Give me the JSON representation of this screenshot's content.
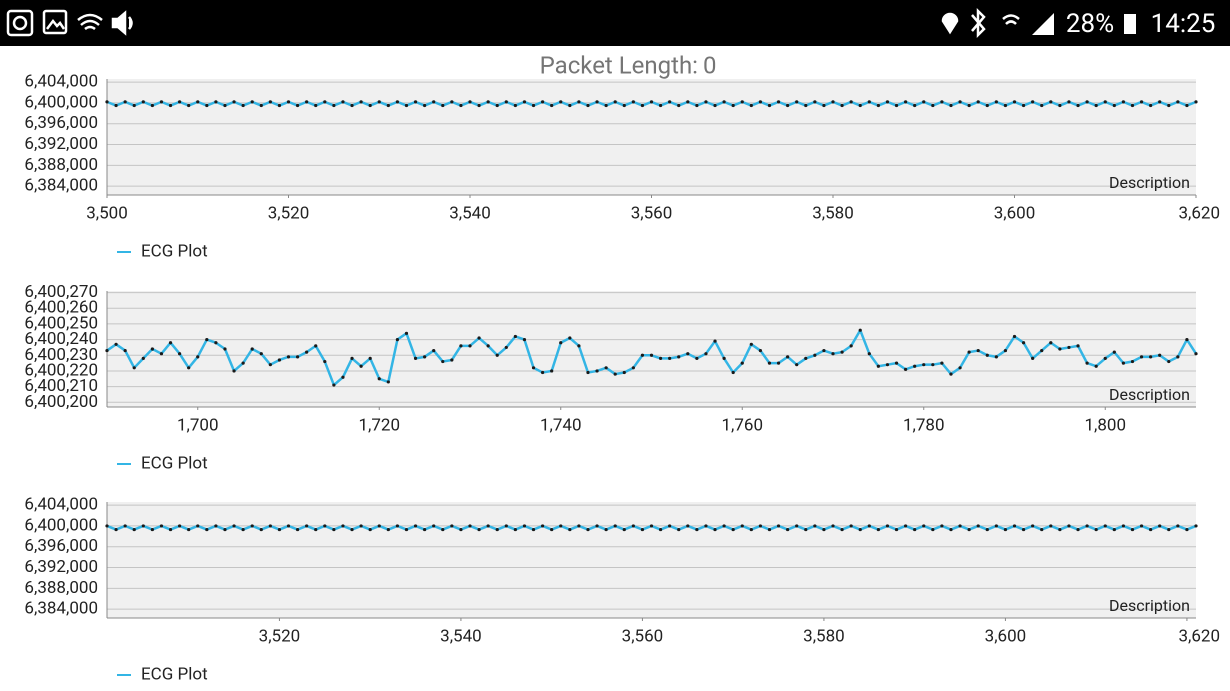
{
  "status_bar": {
    "battery": "28%",
    "time": "14:25"
  },
  "header": {
    "label": "Packet Length:",
    "value": 0
  },
  "chart_data": [
    {
      "type": "line",
      "description": "Description",
      "grid": true,
      "legend": "bottom-left",
      "point_color": "#1a1a1a",
      "x": [
        3500,
        3501,
        3502,
        3503,
        3504,
        3505,
        3506,
        3507,
        3508,
        3509,
        3510,
        3511,
        3512,
        3513,
        3514,
        3515,
        3516,
        3517,
        3518,
        3519,
        3520,
        3521,
        3522,
        3523,
        3524,
        3525,
        3526,
        3527,
        3528,
        3529,
        3530,
        3531,
        3532,
        3533,
        3534,
        3535,
        3536,
        3537,
        3538,
        3539,
        3540,
        3541,
        3542,
        3543,
        3544,
        3545,
        3546,
        3547,
        3548,
        3549,
        3550,
        3551,
        3552,
        3553,
        3554,
        3555,
        3556,
        3557,
        3558,
        3559,
        3560,
        3561,
        3562,
        3563,
        3564,
        3565,
        3566,
        3567,
        3568,
        3569,
        3570,
        3571,
        3572,
        3573,
        3574,
        3575,
        3576,
        3577,
        3578,
        3579,
        3580,
        3581,
        3582,
        3583,
        3584,
        3585,
        3586,
        3587,
        3588,
        3589,
        3590,
        3591,
        3592,
        3593,
        3594,
        3595,
        3596,
        3597,
        3598,
        3599,
        3600,
        3601,
        3602,
        3603,
        3604,
        3605,
        3606,
        3607,
        3608,
        3609,
        3610,
        3611,
        3612,
        3613,
        3614,
        3615,
        3616,
        3617,
        3618,
        3619,
        3620
      ],
      "series": [
        {
          "name": "ECG Plot",
          "color": "#33b5e5",
          "values": [
            6400200,
            6399500,
            6400200,
            6399500,
            6400200,
            6399500,
            6400200,
            6399500,
            6400200,
            6399500,
            6400200,
            6399500,
            6400200,
            6399500,
            6400200,
            6399500,
            6400200,
            6399500,
            6400200,
            6399500,
            6400200,
            6399500,
            6400200,
            6399500,
            6400200,
            6399500,
            6400200,
            6399500,
            6400200,
            6399500,
            6400200,
            6399500,
            6400200,
            6399500,
            6400200,
            6399500,
            6400200,
            6399500,
            6400200,
            6399500,
            6400200,
            6399500,
            6400200,
            6399500,
            6400200,
            6399500,
            6400200,
            6399500,
            6400200,
            6399500,
            6400200,
            6399500,
            6400200,
            6399500,
            6400200,
            6399500,
            6400200,
            6399500,
            6400200,
            6399500,
            6400200,
            6399500,
            6400200,
            6399500,
            6400200,
            6399500,
            6400200,
            6399500,
            6400200,
            6399500,
            6400200,
            6399500,
            6400200,
            6399500,
            6400200,
            6399500,
            6400200,
            6399500,
            6400200,
            6399500,
            6400200,
            6399500,
            6400200,
            6399500,
            6400200,
            6399500,
            6400200,
            6399500,
            6400200,
            6399500,
            6400200,
            6399500,
            6400200,
            6399500,
            6400200,
            6399500,
            6400200,
            6399500,
            6400200,
            6399500,
            6400200,
            6399500,
            6400200,
            6399500,
            6400200,
            6399500,
            6400200,
            6399500,
            6400200,
            6399500,
            6400200,
            6399500,
            6400200,
            6399500,
            6400200,
            6399500,
            6400200,
            6399500,
            6400200,
            6399500,
            6400200
          ]
        }
      ],
      "xlim": [
        3500,
        3620
      ],
      "ylim": [
        6382300,
        6404600
      ],
      "xticks": [
        {
          "value": 3500,
          "label": "3,500"
        },
        {
          "value": 3520,
          "label": "3,520"
        },
        {
          "value": 3540,
          "label": "3,540"
        },
        {
          "value": 3560,
          "label": "3,560"
        },
        {
          "value": 3580,
          "label": "3,580"
        },
        {
          "value": 3600,
          "label": "3,600"
        },
        {
          "value": 3620,
          "label": "3,620"
        }
      ],
      "yticks": [
        {
          "value": 6384000,
          "label": "6,384,000"
        },
        {
          "value": 6388000,
          "label": "6,388,000"
        },
        {
          "value": 6392000,
          "label": "6,392,000"
        },
        {
          "value": 6396000,
          "label": "6,396,000"
        },
        {
          "value": 6400000,
          "label": "6,400,000"
        },
        {
          "value": 6404000,
          "label": "6,404,000"
        }
      ]
    },
    {
      "type": "line",
      "description": "Description",
      "grid": true,
      "legend": "bottom-left",
      "point_color": "#1a1a1a",
      "x": [
        1690,
        1691,
        1692,
        1693,
        1694,
        1695,
        1696,
        1697,
        1698,
        1699,
        1700,
        1701,
        1702,
        1703,
        1704,
        1705,
        1706,
        1707,
        1708,
        1709,
        1710,
        1711,
        1712,
        1713,
        1714,
        1715,
        1716,
        1717,
        1718,
        1719,
        1720,
        1721,
        1722,
        1723,
        1724,
        1725,
        1726,
        1727,
        1728,
        1729,
        1730,
        1731,
        1732,
        1733,
        1734,
        1735,
        1736,
        1737,
        1738,
        1739,
        1740,
        1741,
        1742,
        1743,
        1744,
        1745,
        1746,
        1747,
        1748,
        1749,
        1750,
        1751,
        1752,
        1753,
        1754,
        1755,
        1756,
        1757,
        1758,
        1759,
        1760,
        1761,
        1762,
        1763,
        1764,
        1765,
        1766,
        1767,
        1768,
        1769,
        1770,
        1771,
        1772,
        1773,
        1774,
        1775,
        1776,
        1777,
        1778,
        1779,
        1780,
        1781,
        1782,
        1783,
        1784,
        1785,
        1786,
        1787,
        1788,
        1789,
        1790,
        1791,
        1792,
        1793,
        1794,
        1795,
        1796,
        1797,
        1798,
        1799,
        1800,
        1801,
        1802,
        1803,
        1804,
        1805,
        1806,
        1807,
        1808,
        1809,
        1810
      ],
      "series": [
        {
          "name": "ECG Plot",
          "color": "#33b5e5",
          "values": [
            6400233,
            6400237,
            6400233,
            6400222,
            6400228,
            6400234,
            6400231,
            6400238,
            6400231,
            6400222,
            6400229,
            6400240,
            6400238,
            6400234,
            6400220,
            6400225,
            6400234,
            6400231,
            6400224,
            6400227,
            6400229,
            6400229,
            6400232,
            6400236,
            6400226,
            6400211,
            6400216,
            6400228,
            6400223,
            6400228,
            6400215,
            6400213,
            6400240,
            6400244,
            6400228,
            6400229,
            6400233,
            6400226,
            6400227,
            6400236,
            6400236,
            6400241,
            6400236,
            6400230,
            6400235,
            6400242,
            6400240,
            6400222,
            6400219,
            6400220,
            6400238,
            6400241,
            6400236,
            6400219,
            6400220,
            6400222,
            6400218,
            6400219,
            6400222,
            6400230,
            6400230,
            6400228,
            6400228,
            6400229,
            6400231,
            6400228,
            6400231,
            6400239,
            6400228,
            6400219,
            6400225,
            6400237,
            6400233,
            6400225,
            6400225,
            6400229,
            6400224,
            6400228,
            6400230,
            6400233,
            6400231,
            6400232,
            6400236,
            6400246,
            6400231,
            6400223,
            6400224,
            6400225,
            6400221,
            6400223,
            6400224,
            6400224,
            6400225,
            6400218,
            6400222,
            6400232,
            6400233,
            6400230,
            6400229,
            6400233,
            6400242,
            6400238,
            6400228,
            6400233,
            6400238,
            6400234,
            6400235,
            6400236,
            6400225,
            6400223,
            6400228,
            6400232,
            6400225,
            6400226,
            6400229,
            6400229,
            6400230,
            6400226,
            6400229,
            6400240,
            6400231
          ]
        }
      ],
      "xlim": [
        1690,
        1810
      ],
      "ylim": [
        6400197,
        6400271
      ],
      "xticks": [
        {
          "value": 1700,
          "label": "1,700"
        },
        {
          "value": 1720,
          "label": "1,720"
        },
        {
          "value": 1740,
          "label": "1,740"
        },
        {
          "value": 1760,
          "label": "1,760"
        },
        {
          "value": 1780,
          "label": "1,780"
        },
        {
          "value": 1800,
          "label": "1,800"
        }
      ],
      "yticks": [
        {
          "value": 6400200,
          "label": "6,400,200"
        },
        {
          "value": 6400210,
          "label": "6,400,210"
        },
        {
          "value": 6400220,
          "label": "6,400,220"
        },
        {
          "value": 6400230,
          "label": "6,400,230"
        },
        {
          "value": 6400240,
          "label": "6,400,240"
        },
        {
          "value": 6400250,
          "label": "6,400,250"
        },
        {
          "value": 6400260,
          "label": "6,400,260"
        },
        {
          "value": 6400270,
          "label": "6,400,270"
        }
      ]
    },
    {
      "type": "line",
      "description": "Description",
      "grid": true,
      "legend": "bottom-left",
      "point_color": "#1a1a1a",
      "x": [
        3501,
        3502,
        3503,
        3504,
        3505,
        3506,
        3507,
        3508,
        3509,
        3510,
        3511,
        3512,
        3513,
        3514,
        3515,
        3516,
        3517,
        3518,
        3519,
        3520,
        3521,
        3522,
        3523,
        3524,
        3525,
        3526,
        3527,
        3528,
        3529,
        3530,
        3531,
        3532,
        3533,
        3534,
        3535,
        3536,
        3537,
        3538,
        3539,
        3540,
        3541,
        3542,
        3543,
        3544,
        3545,
        3546,
        3547,
        3548,
        3549,
        3550,
        3551,
        3552,
        3553,
        3554,
        3555,
        3556,
        3557,
        3558,
        3559,
        3560,
        3561,
        3562,
        3563,
        3564,
        3565,
        3566,
        3567,
        3568,
        3569,
        3570,
        3571,
        3572,
        3573,
        3574,
        3575,
        3576,
        3577,
        3578,
        3579,
        3580,
        3581,
        3582,
        3583,
        3584,
        3585,
        3586,
        3587,
        3588,
        3589,
        3590,
        3591,
        3592,
        3593,
        3594,
        3595,
        3596,
        3597,
        3598,
        3599,
        3600,
        3601,
        3602,
        3603,
        3604,
        3605,
        3606,
        3607,
        3608,
        3609,
        3610,
        3611,
        3612,
        3613,
        3614,
        3615,
        3616,
        3617,
        3618,
        3619,
        3620,
        3621
      ],
      "series": [
        {
          "name": "ECG Plot",
          "color": "#33b5e5",
          "values": [
            6400000,
            6399300,
            6400000,
            6399300,
            6400000,
            6399300,
            6400000,
            6399300,
            6400000,
            6399300,
            6400000,
            6399300,
            6400000,
            6399300,
            6400000,
            6399300,
            6400000,
            6399300,
            6400000,
            6399300,
            6400000,
            6399300,
            6400000,
            6399300,
            6400000,
            6399300,
            6400000,
            6399300,
            6400000,
            6399300,
            6400000,
            6399300,
            6400000,
            6399300,
            6400000,
            6399300,
            6400000,
            6399300,
            6400000,
            6399300,
            6400000,
            6399300,
            6400000,
            6399300,
            6400000,
            6399300,
            6400000,
            6399300,
            6400000,
            6399300,
            6400000,
            6399300,
            6400000,
            6399300,
            6400000,
            6399300,
            6400000,
            6399300,
            6400000,
            6399300,
            6400000,
            6399300,
            6400000,
            6399300,
            6400000,
            6399300,
            6400000,
            6399300,
            6400000,
            6399300,
            6400000,
            6399300,
            6400000,
            6399300,
            6400000,
            6399300,
            6400000,
            6399300,
            6400000,
            6399300,
            6400000,
            6399300,
            6400000,
            6399300,
            6400000,
            6399300,
            6400000,
            6399300,
            6400000,
            6399300,
            6400000,
            6399300,
            6400000,
            6399300,
            6400000,
            6399300,
            6400000,
            6399300,
            6400000,
            6399300,
            6400000,
            6399300,
            6400000,
            6399300,
            6400000,
            6399300,
            6400000,
            6399300,
            6400000,
            6399300,
            6400000,
            6399300,
            6400000,
            6399300,
            6400000,
            6399300,
            6400000,
            6399300,
            6400000,
            6399300,
            6400000
          ]
        }
      ],
      "xlim": [
        3501,
        3621
      ],
      "ylim": [
        6382300,
        6404600
      ],
      "xticks": [
        {
          "value": 3520,
          "label": "3,520"
        },
        {
          "value": 3540,
          "label": "3,540"
        },
        {
          "value": 3560,
          "label": "3,560"
        },
        {
          "value": 3580,
          "label": "3,580"
        },
        {
          "value": 3600,
          "label": "3,600"
        },
        {
          "value": 3620,
          "label": "3,620"
        }
      ],
      "yticks": [
        {
          "value": 6384000,
          "label": "6,384,000"
        },
        {
          "value": 6388000,
          "label": "6,388,000"
        },
        {
          "value": 6392000,
          "label": "6,392,000"
        },
        {
          "value": 6396000,
          "label": "6,396,000"
        },
        {
          "value": 6400000,
          "label": "6,400,000"
        },
        {
          "value": 6404000,
          "label": "6,404,000"
        }
      ]
    }
  ]
}
